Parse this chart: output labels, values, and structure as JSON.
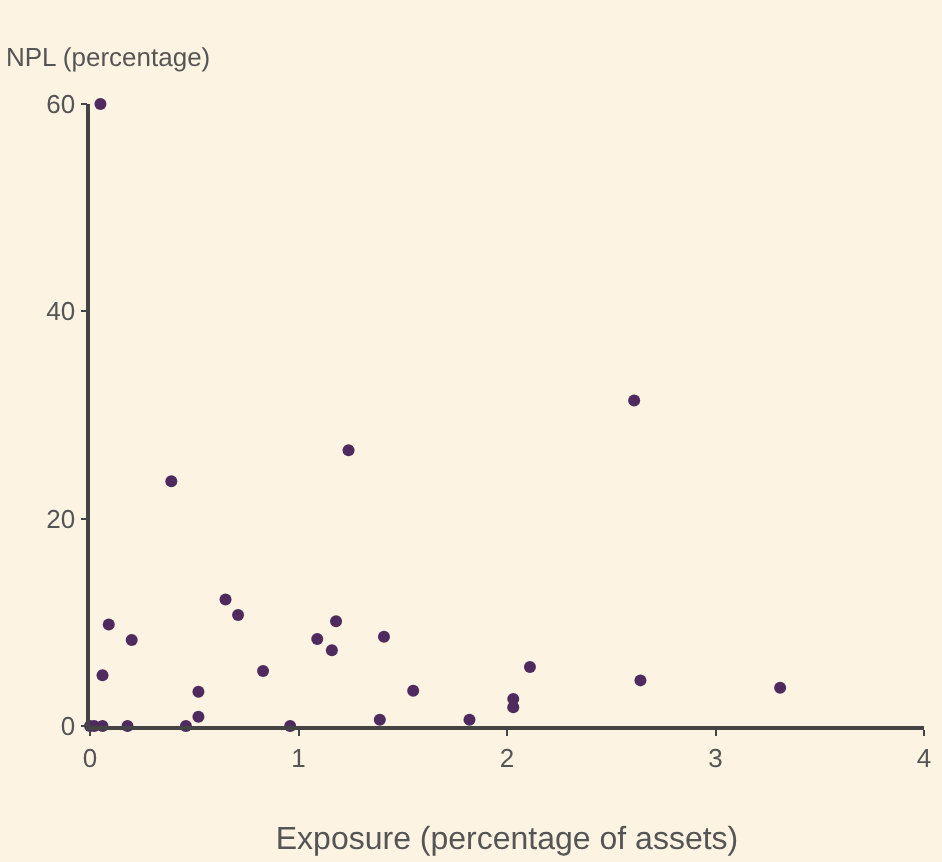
{
  "chart_data": {
    "type": "scatter",
    "ylabel": "NPL (percentage)",
    "xlabel": "Exposure (percentage of assets)",
    "x": [
      0,
      0.02,
      0.06,
      0.05,
      0.06,
      0.09,
      0.18,
      0.2,
      0.39,
      0.46,
      0.52,
      0.52,
      0.65,
      0.71,
      0.83,
      0.96,
      1.09,
      1.16,
      1.18,
      1.24,
      1.41,
      1.39,
      1.55,
      1.82,
      2.03,
      2.03,
      2.11,
      2.61,
      2.64,
      3.31
    ],
    "series": [
      {
        "color": "#4f2a5e",
        "values": [
          0,
          0,
          0,
          60,
          4.9,
          9.8,
          0,
          8.3,
          23.6,
          0,
          0.9,
          3.3,
          12.2,
          10.7,
          5.3,
          0,
          8.4,
          7.3,
          10.1,
          26.6,
          8.6,
          0.6,
          3.4,
          0.6,
          1.8,
          2.6,
          5.7,
          31.4,
          4.4,
          3.7
        ]
      }
    ],
    "xlim": [
      0,
      4
    ],
    "xticks": [
      0,
      1,
      2,
      3,
      4
    ],
    "ylim": [
      0,
      60
    ],
    "yticks": [
      0,
      20,
      40,
      60
    ],
    "grid": false,
    "marker": "circle"
  }
}
